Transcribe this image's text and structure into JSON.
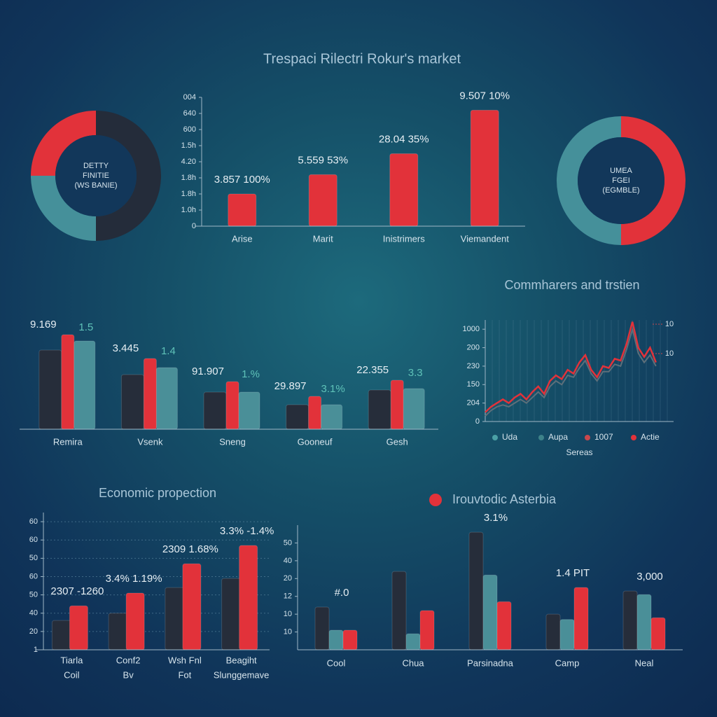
{
  "title": "Trespaci Rilectri Rokur's market",
  "chart_data": [
    {
      "type": "pie",
      "center_text": [
        "DETTY",
        "FINITIE",
        "(WS BANIE)"
      ],
      "values": [
        50,
        25,
        25
      ],
      "colors": [
        "#242c3a",
        "#45909a",
        "#e2323a"
      ]
    },
    {
      "type": "bar",
      "categories": [
        "Arise",
        "Marit",
        "Inistrimers",
        "Viemandent"
      ],
      "values": [
        2.0,
        3.2,
        4.5,
        7.2
      ],
      "color": "#e2323a",
      "annotations": [
        "3.857 100%",
        "5.559 53%",
        "28.04 35%",
        "9.507 10%"
      ],
      "ylim": [
        0,
        8
      ],
      "yticks": [
        0,
        {
          "value": 1,
          "label": "1.0h"
        },
        {
          "value": 2,
          "label": "1.8h"
        },
        {
          "value": 3,
          "label": "1.8h"
        },
        {
          "value": 4,
          "label": "4.20"
        },
        {
          "value": 5,
          "label": "1.5h"
        },
        {
          "value": 6,
          "label": "600"
        },
        {
          "value": 7,
          "label": "640"
        },
        {
          "value": 8,
          "label": "004"
        }
      ]
    },
    {
      "type": "bar",
      "categories": [
        "Remira",
        "Vsenk",
        "Sneng",
        "Gooneuf",
        "Gesh"
      ],
      "ylim": [
        0,
        150
      ],
      "series": [
        {
          "color": "#262d3a",
          "values": [
            113,
            78,
            53,
            35,
            56
          ]
        },
        {
          "color": "#e2323a",
          "values": [
            135,
            101,
            68,
            47,
            70
          ]
        },
        {
          "color": "#4a8f98",
          "values": [
            126,
            88,
            53,
            35,
            58
          ]
        }
      ],
      "annotations": [
        [
          "9.169",
          "1.5"
        ],
        [
          "3.445",
          "1.4"
        ],
        [
          "91.907",
          "1.%"
        ],
        [
          "29.897",
          "3.1%"
        ],
        [
          "22.355",
          "3.3"
        ]
      ]
    },
    {
      "type": "line",
      "title": "Commharers and trstien",
      "x": [
        0,
        1,
        2,
        3,
        4,
        5,
        6,
        7,
        8,
        9,
        10,
        11,
        12,
        13,
        14,
        15,
        16,
        17,
        18,
        19,
        20,
        21,
        22,
        23,
        24,
        25,
        26,
        27,
        28,
        29
      ],
      "xlim": [
        0,
        32
      ],
      "ylim": [
        0,
        5.5
      ],
      "yticks": [
        0,
        {
          "value": 1,
          "label": "204"
        },
        {
          "value": 2,
          "label": "150"
        },
        {
          "value": 3,
          "label": "230"
        },
        {
          "value": 4,
          "label": "200"
        },
        {
          "value": 5,
          "label": "1000"
        }
      ],
      "series": [
        {
          "color": "#5d6f7a",
          "values": [
            0.3,
            0.6,
            0.8,
            0.9,
            0.8,
            1.0,
            1.2,
            1.0,
            1.3,
            1.6,
            1.3,
            1.9,
            2.2,
            2.0,
            2.5,
            2.4,
            2.9,
            3.3,
            2.6,
            2.2,
            2.7,
            2.7,
            3.1,
            3.0,
            3.9,
            5.0,
            3.7,
            3.2,
            3.6,
            3.0
          ]
        },
        {
          "color": "#e2323a",
          "values": [
            0.5,
            0.8,
            1.0,
            1.2,
            1.0,
            1.3,
            1.5,
            1.2,
            1.6,
            1.9,
            1.5,
            2.2,
            2.5,
            2.3,
            2.8,
            2.6,
            3.2,
            3.6,
            2.8,
            2.4,
            3.0,
            2.9,
            3.4,
            3.3,
            4.2,
            5.4,
            4.0,
            3.5,
            4.0,
            3.2
          ]
        }
      ],
      "annotations": [
        "10",
        "10"
      ],
      "legend": [
        {
          "name": "Uda",
          "color": "#4aa0a5"
        },
        {
          "name": "Aupa",
          "color": "#3d8289"
        },
        {
          "name": "1007",
          "color": "#c9474c"
        },
        {
          "name": "Actie",
          "color": "#e2323a"
        }
      ],
      "legend_title": "Sereas"
    },
    {
      "type": "bar",
      "title": "Economic propection",
      "categories": [
        [
          "Tiarla",
          "Coil"
        ],
        [
          "Conf2",
          "Bv"
        ],
        [
          "Wsh Fnl",
          "Fot"
        ],
        [
          "Beagiht",
          "Slunggemave"
        ]
      ],
      "ylim": [
        0,
        7.5
      ],
      "grid": true,
      "yticks": [
        {
          "value": 0,
          "label": "1"
        },
        {
          "value": 1,
          "label": "20"
        },
        {
          "value": 2,
          "label": "40"
        },
        {
          "value": 3,
          "label": "50"
        },
        {
          "value": 4,
          "label": "60"
        },
        {
          "value": 5,
          "label": "50"
        },
        {
          "value": 6,
          "label": "60"
        },
        {
          "value": 7,
          "label": "60"
        }
      ],
      "series": [
        {
          "color": "#262d3a",
          "values": [
            1.6,
            2.0,
            3.4,
            3.9
          ]
        },
        {
          "color": "#e2323a",
          "values": [
            2.4,
            3.1,
            4.7,
            5.7
          ]
        }
      ],
      "annotations": [
        "2307 -1260",
        "3.4% 1.19%",
        "2309 1.68%",
        "3.3% -1.4%"
      ]
    },
    {
      "type": "bar",
      "title": "Irouvtodic Asterbia",
      "categories": [
        "Cool",
        "Chua",
        "Parsinadna",
        "Camp",
        "Neal"
      ],
      "ylim": [
        0,
        7
      ],
      "yticks": [
        {
          "value": 1,
          "label": "10"
        },
        {
          "value": 2,
          "label": "10"
        },
        {
          "value": 3,
          "label": "12"
        },
        {
          "value": 4,
          "label": "20"
        },
        {
          "value": 5,
          "label": "40"
        },
        {
          "value": 6,
          "label": "50"
        }
      ],
      "series": [
        {
          "color": "#262d3a",
          "values": [
            2.4,
            4.4,
            6.6,
            2.0,
            3.3
          ]
        },
        {
          "color": "#4a8f98",
          "values": [
            1.1,
            0.9,
            4.2,
            1.7,
            3.1
          ]
        },
        {
          "color": "#e2323a",
          "values": [
            1.1,
            2.2,
            2.7,
            3.5,
            1.8
          ]
        }
      ],
      "annotations": [
        "#.0",
        null,
        "3.1%",
        "1.4 PIT",
        "3,000"
      ]
    },
    {
      "type": "pie",
      "center_text": [
        "UMEA",
        "FGEI",
        "(EGMBLE)"
      ],
      "values": [
        50,
        50
      ],
      "colors": [
        "#e2323a",
        "#45909a"
      ]
    }
  ]
}
